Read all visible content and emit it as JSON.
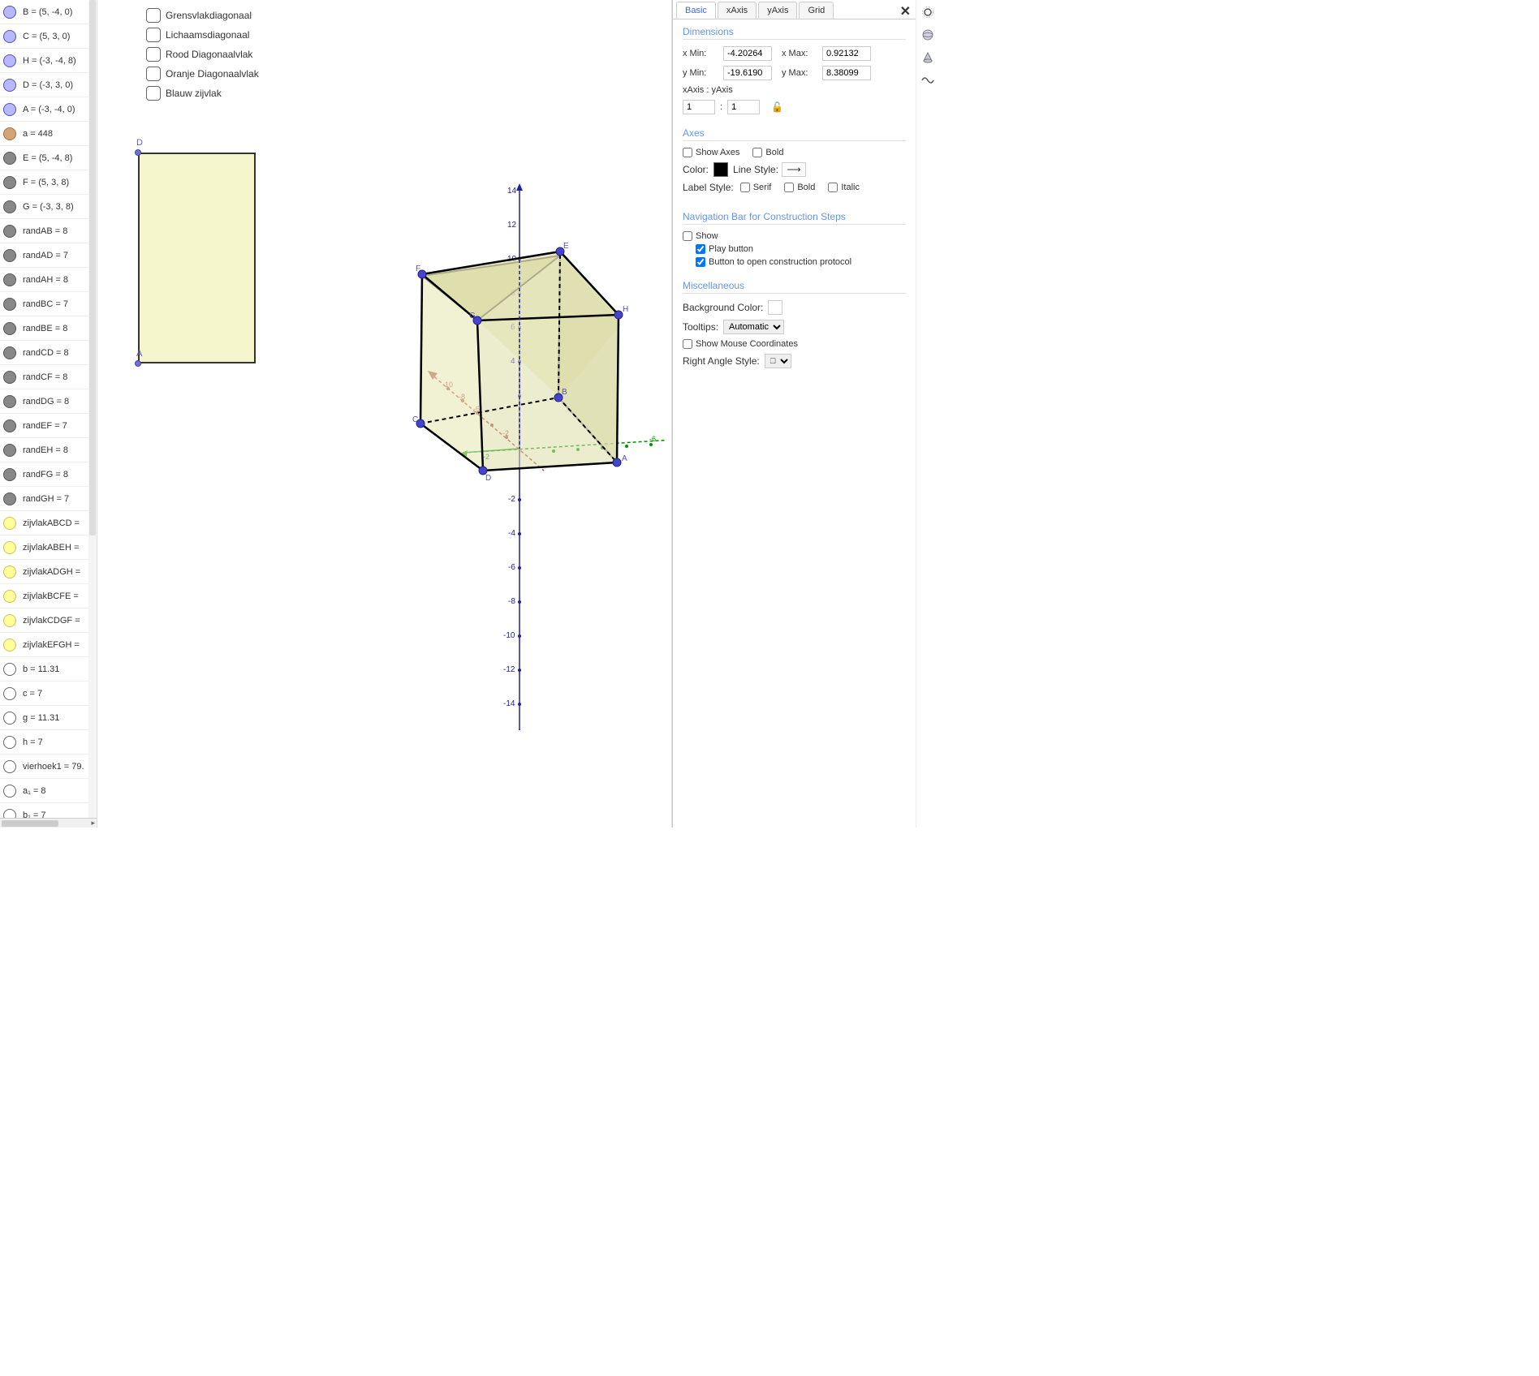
{
  "algebra": [
    {
      "color": "blue",
      "label": "B = (5, -4, 0)"
    },
    {
      "color": "blue",
      "label": "C = (5, 3, 0)"
    },
    {
      "color": "blue",
      "label": "H = (-3, -4, 8)"
    },
    {
      "color": "blue",
      "label": "D = (-3, 3, 0)"
    },
    {
      "color": "blue",
      "label": "A = (-3, -4, 0)"
    },
    {
      "color": "brown",
      "label": "a = 448"
    },
    {
      "color": "gray",
      "label": "E = (5, -4, 8)"
    },
    {
      "color": "gray",
      "label": "F = (5, 3, 8)"
    },
    {
      "color": "gray",
      "label": "G = (-3, 3, 8)"
    },
    {
      "color": "gray",
      "label": "randAB = 8"
    },
    {
      "color": "gray",
      "label": "randAD = 7"
    },
    {
      "color": "gray",
      "label": "randAH = 8"
    },
    {
      "color": "gray",
      "label": "randBC = 7"
    },
    {
      "color": "gray",
      "label": "randBE = 8"
    },
    {
      "color": "gray",
      "label": "randCD = 8"
    },
    {
      "color": "gray",
      "label": "randCF = 8"
    },
    {
      "color": "gray",
      "label": "randDG = 8"
    },
    {
      "color": "gray",
      "label": "randEF = 7"
    },
    {
      "color": "gray",
      "label": "randEH = 8"
    },
    {
      "color": "gray",
      "label": "randFG = 8"
    },
    {
      "color": "gray",
      "label": "randGH = 7"
    },
    {
      "color": "yellow",
      "label": "zijvlakABCD ="
    },
    {
      "color": "yellow",
      "label": "zijvlakABEH ="
    },
    {
      "color": "yellow",
      "label": "zijvlakADGH ="
    },
    {
      "color": "yellow",
      "label": "zijvlakBCFE ="
    },
    {
      "color": "yellow",
      "label": "zijvlakCDGF ="
    },
    {
      "color": "yellow",
      "label": "zijvlakEFGH ="
    },
    {
      "color": "white",
      "label": "b = 11.31"
    },
    {
      "color": "white",
      "label": "c = 7"
    },
    {
      "color": "white",
      "label": "g = 11.31"
    },
    {
      "color": "white",
      "label": "h = 7"
    },
    {
      "color": "white",
      "label": "vierhoek1 = 79."
    },
    {
      "color": "white",
      "label": "a₁ = 8"
    },
    {
      "color": "white",
      "label": "b₁ = 7"
    }
  ],
  "checkboxes": [
    {
      "label": "Grensvlakdiagonaal"
    },
    {
      "label": "Lichaamsdiagonaal"
    },
    {
      "label": "Rood Diagonaalvlak"
    },
    {
      "label": "Oranje Diagonaalvlak"
    },
    {
      "label": "Blauw zijvlak"
    }
  ],
  "panel2d": {
    "topLabel": "D",
    "bottomLabel": "A"
  },
  "cube": {
    "labels": {
      "A": "A",
      "B": "B",
      "C": "C",
      "D": "D",
      "E": "E",
      "F": "F",
      "G": "G",
      "H": "H"
    },
    "axis_ticks_z": [
      "14",
      "12",
      "10",
      "8",
      "6",
      "4",
      "-2",
      "-4",
      "-6",
      "-8",
      "-10",
      "-12",
      "-14"
    ],
    "axis_ticks_x": [
      "-10",
      "-8",
      "-6",
      "-4",
      "-2",
      "-2",
      "-4",
      "-6",
      "-8",
      "-10"
    ],
    "colors": {
      "point": "#4444cc",
      "z_axis": "#2020a0",
      "x_axis": "#009000",
      "y_axis": "#b04040",
      "face": "#e8e8b0",
      "face_stroke": "#000",
      "dash": "#000"
    }
  },
  "settings": {
    "tabs": [
      "Basic",
      "xAxis",
      "yAxis",
      "Grid"
    ],
    "activeTab": 0,
    "dimensions": {
      "title": "Dimensions",
      "xmin_lbl": "x Min:",
      "xmin": "-4.20264",
      "xmax_lbl": "x Max:",
      "xmax": "0.92132",
      "ymin_lbl": "y Min:",
      "ymin": "-19.6190",
      "ymax_lbl": "y Max:",
      "ymax": "8.38099",
      "ratio_lbl": "xAxis : yAxis",
      "ratio_x": "1",
      "ratio_y": "1",
      "colon": ":"
    },
    "axes": {
      "title": "Axes",
      "show": "Show Axes",
      "bold": "Bold",
      "color_lbl": "Color:",
      "linestyle_lbl": "Line Style:",
      "labelstyle_lbl": "Label Style:",
      "serif": "Serif",
      "bold2": "Bold",
      "italic": "Italic"
    },
    "nav": {
      "title": "Navigation Bar for Construction Steps",
      "show": "Show",
      "play": "Play button",
      "open": "Button to open construction protocol"
    },
    "misc": {
      "title": "Miscellaneous",
      "bgcolor": "Background Color:",
      "tooltips_lbl": "Tooltips:",
      "tooltips_val": "Automatic",
      "showmouse": "Show Mouse Coordinates",
      "rightangle": "Right Angle Style:",
      "rightangle_val": "□"
    }
  }
}
